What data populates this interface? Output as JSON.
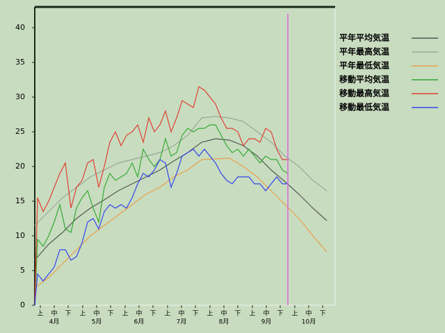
{
  "chart_data": {
    "type": "line",
    "xlim": [
      0,
      216
    ],
    "ylim": [
      0,
      43
    ],
    "yticks": [
      0,
      5,
      10,
      15,
      20,
      25,
      30,
      35,
      40
    ],
    "xticks": [
      {
        "value": 4,
        "label": "上"
      },
      {
        "value": 14,
        "label": "中"
      },
      {
        "value": 24,
        "label": "下"
      },
      {
        "value": 34.5,
        "label": "上"
      },
      {
        "value": 44.5,
        "label": "中"
      },
      {
        "value": 54.5,
        "label": "下"
      },
      {
        "value": 65,
        "label": "上"
      },
      {
        "value": 75,
        "label": "中"
      },
      {
        "value": 85,
        "label": "下"
      },
      {
        "value": 95.5,
        "label": "上"
      },
      {
        "value": 105.5,
        "label": "中"
      },
      {
        "value": 115.5,
        "label": "下"
      },
      {
        "value": 126,
        "label": "上"
      },
      {
        "value": 136,
        "label": "中"
      },
      {
        "value": 146,
        "label": "下"
      },
      {
        "value": 156.5,
        "label": "上"
      },
      {
        "value": 166.5,
        "label": "中"
      },
      {
        "value": 176.5,
        "label": "下"
      },
      {
        "value": 187,
        "label": "上"
      },
      {
        "value": 197,
        "label": "中"
      },
      {
        "value": 207,
        "label": "下"
      }
    ],
    "month_labels": [
      {
        "value": 14,
        "label": "4月"
      },
      {
        "value": 44.5,
        "label": "5月"
      },
      {
        "value": 75,
        "label": "6月"
      },
      {
        "value": 105.5,
        "label": "7月"
      },
      {
        "value": 136,
        "label": "8月"
      },
      {
        "value": 166.5,
        "label": "9月"
      },
      {
        "value": 197,
        "label": "10月"
      }
    ],
    "today_line": {
      "x": 182,
      "color": "#dd66dd"
    },
    "series": [
      {
        "name": "平年平均気温",
        "color": "#505850",
        "x": [
          0,
          10,
          20,
          30,
          40,
          50,
          60,
          70,
          80,
          90,
          100,
          110,
          120,
          130,
          140,
          150,
          160,
          170,
          180,
          190,
          200,
          210
        ],
        "values": [
          6.5,
          8.8,
          10.5,
          12.5,
          14,
          15.2,
          16.5,
          17.5,
          18.5,
          19.5,
          20.8,
          22,
          23.5,
          24,
          23.8,
          23,
          21.5,
          19.5,
          17.8,
          16,
          14,
          12.2
        ]
      },
      {
        "name": "平年最高気温",
        "color": "#9aa898",
        "x": [
          0,
          10,
          20,
          30,
          40,
          50,
          60,
          70,
          80,
          90,
          100,
          110,
          120,
          130,
          140,
          150,
          160,
          170,
          180,
          190,
          200,
          210
        ],
        "values": [
          11.5,
          13.5,
          15.5,
          17,
          18.5,
          19.5,
          20.5,
          21,
          21.5,
          22,
          23,
          24.5,
          27,
          27.2,
          27,
          26.5,
          25,
          23.5,
          21.5,
          20,
          18,
          16.5
        ]
      },
      {
        "name": "平年最低気温",
        "color": "#e8a048",
        "x": [
          0,
          10,
          20,
          30,
          40,
          50,
          60,
          70,
          80,
          90,
          100,
          110,
          120,
          130,
          140,
          150,
          160,
          170,
          180,
          190,
          200,
          210
        ],
        "values": [
          2.5,
          4,
          6,
          8,
          10,
          11.5,
          13,
          14.5,
          16,
          17,
          18.5,
          19.5,
          21,
          21.1,
          21.2,
          20,
          18.5,
          16.5,
          14.5,
          12.5,
          10,
          7.7
        ]
      },
      {
        "name": "移動平均気温",
        "color": "#33aa33",
        "x": [
          0,
          2,
          6,
          10,
          14,
          18,
          22,
          26,
          30,
          34,
          38,
          42,
          46,
          50,
          54,
          58,
          62,
          66,
          70,
          74,
          78,
          82,
          86,
          90,
          94,
          98,
          102,
          106,
          110,
          114,
          118,
          122,
          126,
          130,
          134,
          138,
          142,
          146,
          150,
          154,
          158,
          162,
          166,
          170,
          174,
          178,
          182
        ],
        "values": [
          0,
          9.5,
          8.5,
          10,
          12,
          14.5,
          11,
          10.5,
          14,
          15.5,
          16.5,
          14,
          12,
          17,
          19,
          18,
          18.5,
          19,
          20.5,
          18.5,
          22.5,
          21,
          20,
          21,
          24,
          21.5,
          22,
          24.5,
          25.5,
          25,
          25.5,
          25.5,
          26,
          26,
          24.5,
          23,
          22,
          22.5,
          21.5,
          22.5,
          21.5,
          20.5,
          21.5,
          21,
          21,
          19.5,
          19
        ]
      },
      {
        "name": "移動最高気温",
        "color": "#e04030",
        "x": [
          0,
          2,
          6,
          10,
          14,
          18,
          22,
          26,
          30,
          34,
          38,
          42,
          46,
          50,
          54,
          58,
          62,
          66,
          70,
          74,
          78,
          82,
          86,
          90,
          94,
          98,
          102,
          106,
          110,
          114,
          118,
          122,
          126,
          130,
          134,
          138,
          142,
          146,
          150,
          154,
          158,
          162,
          166,
          170,
          174,
          178,
          182
        ],
        "values": [
          0,
          15.5,
          13.5,
          15,
          17,
          19,
          20.5,
          14,
          17,
          18,
          20.5,
          21,
          17,
          20,
          23.5,
          25,
          23,
          24.5,
          25,
          26,
          23.5,
          27,
          25,
          26,
          28,
          25,
          27,
          29.5,
          29,
          28.5,
          31.5,
          31,
          30,
          29,
          27,
          25.5,
          25.5,
          25,
          23,
          24,
          24,
          23.5,
          25.5,
          25,
          22.5,
          21,
          21
        ]
      },
      {
        "name": "移動最低気温",
        "color": "#3344ee",
        "x": [
          0,
          2,
          6,
          10,
          14,
          18,
          22,
          26,
          30,
          34,
          38,
          42,
          46,
          50,
          54,
          58,
          62,
          66,
          70,
          74,
          78,
          82,
          86,
          90,
          94,
          98,
          102,
          106,
          110,
          114,
          118,
          122,
          126,
          130,
          134,
          138,
          142,
          146,
          150,
          154,
          158,
          162,
          166,
          170,
          174,
          178,
          182
        ],
        "values": [
          0,
          4.5,
          3.5,
          4.5,
          5.5,
          8,
          8,
          6.5,
          7,
          9,
          12,
          12.5,
          11,
          13.5,
          14.5,
          14,
          14.5,
          14,
          15.5,
          17.5,
          19,
          18.5,
          19.5,
          21,
          20.5,
          17,
          19,
          21.5,
          22,
          22.5,
          21.5,
          22.5,
          21.5,
          20.5,
          19,
          18,
          17.5,
          18.5,
          18.5,
          18.5,
          17.5,
          17.5,
          16.5,
          17.5,
          18.5,
          17.5,
          17.5
        ]
      }
    ]
  }
}
